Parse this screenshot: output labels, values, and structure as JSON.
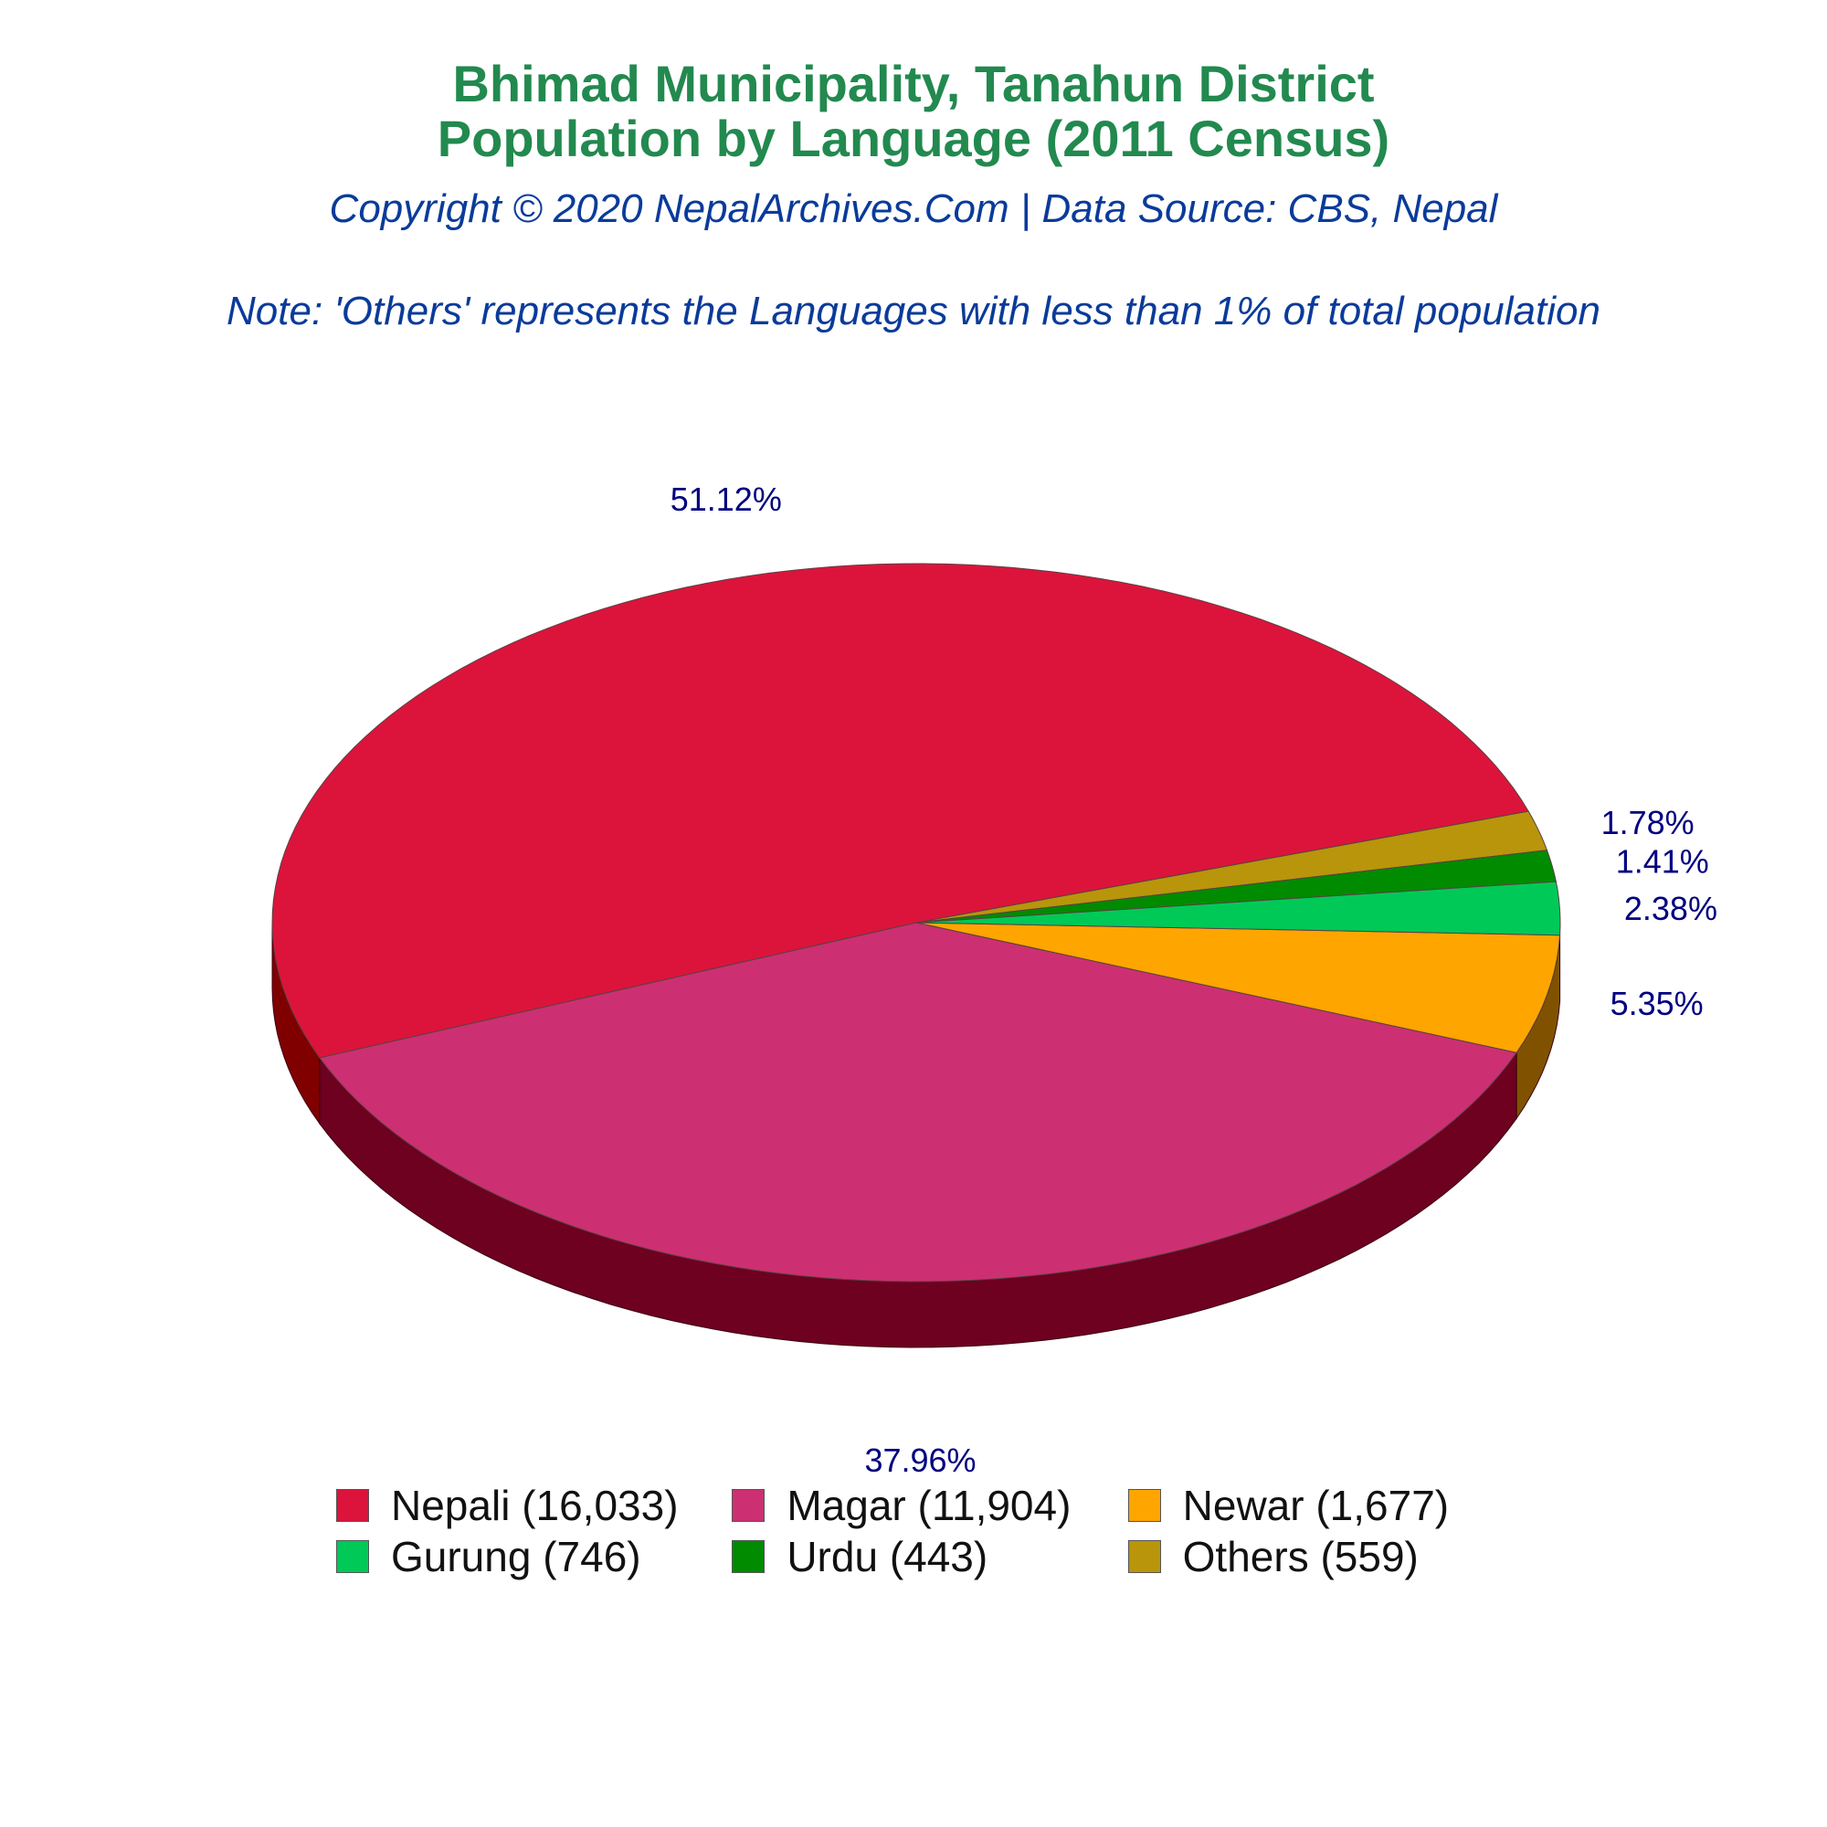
{
  "title_lines": [
    "Bhimad Municipality, Tanahun District",
    "Population by Language (2011 Census)"
  ],
  "subtitle": "Copyright © 2020 NepalArchives.Com | Data Source: CBS, Nepal",
  "note": "Note: 'Others' represents the Languages with less than 1% of total population",
  "chart_data": {
    "type": "pie",
    "style": "3d",
    "start_direction": "clockwise from right, Newar first",
    "slices": [
      {
        "label": "Nepali (16,033)",
        "name": "Nepali",
        "value": 16033,
        "percent": 51.12,
        "percent_label": "51.12%",
        "color": "#dc143c",
        "side_color": "#800000"
      },
      {
        "label": "Magar (11,904)",
        "name": "Magar",
        "value": 11904,
        "percent": 37.96,
        "percent_label": "37.96%",
        "color": "#cc3072",
        "side_color": "#6e0020"
      },
      {
        "label": "Newar (1,677)",
        "name": "Newar",
        "value": 1677,
        "percent": 5.35,
        "percent_label": "5.35%",
        "color": "#ffa500",
        "side_color": "#805200"
      },
      {
        "label": "Gurung (746)",
        "name": "Gurung",
        "value": 746,
        "percent": 2.38,
        "percent_label": "2.38%",
        "color": "#00c957",
        "side_color": "#006a2d"
      },
      {
        "label": "Urdu (443)",
        "name": "Urdu",
        "value": 443,
        "percent": 1.41,
        "percent_label": "1.41%",
        "color": "#008b00",
        "side_color": "#004500"
      },
      {
        "label": "Others (559)",
        "name": "Others",
        "value": 559,
        "percent": 1.78,
        "percent_label": "1.78%",
        "color": "#b8950b",
        "side_color": "#5c4a05"
      }
    ],
    "legend_order": [
      "Nepali",
      "Magar",
      "Newar",
      "Gurung",
      "Urdu",
      "Others"
    ],
    "label_color": "#000080",
    "legend_placement": "bottom"
  }
}
